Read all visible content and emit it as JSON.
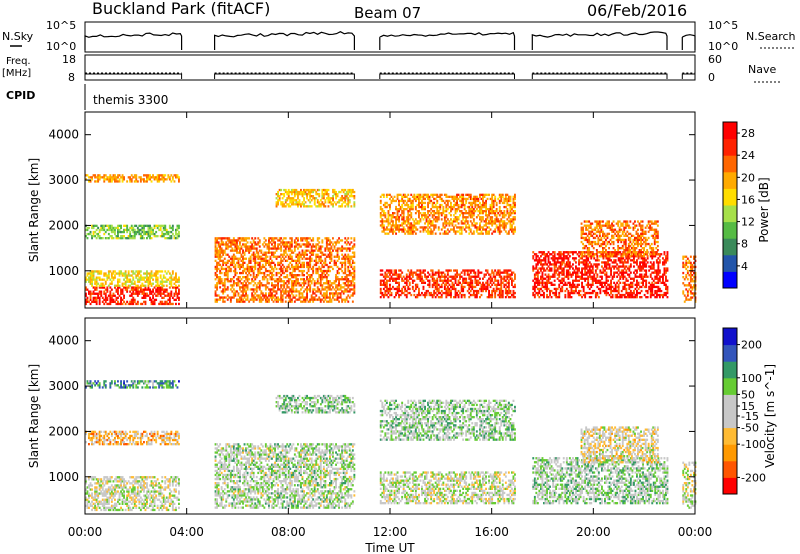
{
  "header": {
    "site": "Buckland Park (fitACF)",
    "beam": "Beam 07",
    "date": "06/Feb/2016"
  },
  "panels": {
    "nsky_label": "N.Sky",
    "nsky_ticks": [
      "10^5",
      "10^0"
    ],
    "nsearch_label": "N.Search",
    "nsearch_ticks": [
      "10^5",
      "10^0"
    ],
    "freq_label_1": "Freq.",
    "freq_label_2": "[MHz]",
    "freq_ticks": [
      "18",
      "8"
    ],
    "nave_label": "Nave",
    "nave_ticks": [
      "60",
      "0"
    ],
    "cpid_label": "CPID",
    "cpid_value": "themis 3300"
  },
  "chart_data": [
    {
      "type": "heatmap",
      "title": "Power",
      "xlabel": "Time UT",
      "ylabel": "Slant Range [km]",
      "xticks": [
        "00:00",
        "04:00",
        "08:00",
        "12:00",
        "16:00",
        "20:00",
        "00:00"
      ],
      "xlim_hours": [
        0,
        24
      ],
      "yticks": [
        1000,
        2000,
        3000,
        4000
      ],
      "ylim": [
        180,
        4500
      ],
      "colorbar": {
        "label": "Power [dB]",
        "ticks": [
          4,
          8,
          12,
          16,
          20,
          24,
          28
        ],
        "range": [
          0,
          30
        ],
        "colors": [
          "#0000ff",
          "#2255aa",
          "#3a8a5a",
          "#55bb44",
          "#a6e04a",
          "#ffdd00",
          "#ffaa00",
          "#ff6600",
          "#ff2200",
          "#ff0000"
        ]
      },
      "observation_gaps_hours": [
        [
          3.8,
          5.1
        ],
        [
          10.6,
          11.6
        ],
        [
          16.9,
          17.6
        ],
        [
          22.9,
          23.5
        ]
      ],
      "echo_regions": [
        {
          "t": [
            0.0,
            3.7
          ],
          "r": [
            250,
            650
          ],
          "db": 26
        },
        {
          "t": [
            0.0,
            3.7
          ],
          "r": [
            650,
            1000
          ],
          "db": 17
        },
        {
          "t": [
            0.0,
            3.7
          ],
          "r": [
            1700,
            2000
          ],
          "db": 12
        },
        {
          "t": [
            0.0,
            3.7
          ],
          "r": [
            2950,
            3100
          ],
          "db": 20
        },
        {
          "t": [
            5.1,
            10.6
          ],
          "r": [
            300,
            1700
          ],
          "db": 22
        },
        {
          "t": [
            7.5,
            10.6
          ],
          "r": [
            2400,
            2800
          ],
          "db": 18
        },
        {
          "t": [
            11.6,
            16.9
          ],
          "r": [
            400,
            1000
          ],
          "db": 25
        },
        {
          "t": [
            11.6,
            16.9
          ],
          "r": [
            1800,
            2700
          ],
          "db": 21
        },
        {
          "t": [
            17.6,
            22.9
          ],
          "r": [
            400,
            1400
          ],
          "db": 27
        },
        {
          "t": [
            19.5,
            22.5
          ],
          "r": [
            1300,
            2100
          ],
          "db": 22
        },
        {
          "t": [
            23.5,
            24.0
          ],
          "r": [
            300,
            1300
          ],
          "db": 22
        }
      ]
    },
    {
      "type": "heatmap",
      "title": "Velocity",
      "xlabel": "Time UT",
      "ylabel": "Slant Range [km]",
      "xticks": [
        "00:00",
        "04:00",
        "08:00",
        "12:00",
        "16:00",
        "20:00",
        "00:00"
      ],
      "xlim_hours": [
        0,
        24
      ],
      "yticks": [
        1000,
        2000,
        3000,
        4000
      ],
      "ylim": [
        180,
        4500
      ],
      "colorbar": {
        "label": "Velocity [m s^-1]",
        "ticks": [
          200,
          100,
          50,
          15,
          -15,
          -50,
          -100,
          -200
        ],
        "range": [
          -250,
          250
        ],
        "colors": [
          "#ff0000",
          "#ff5500",
          "#ff9900",
          "#ffbb33",
          "#c8c8c8",
          "#c8c8c8",
          "#66cc33",
          "#339966",
          "#3355bb",
          "#1111cc"
        ]
      },
      "observation_gaps_hours": [
        [
          3.8,
          5.1
        ],
        [
          10.6,
          11.6
        ],
        [
          16.9,
          17.6
        ],
        [
          22.9,
          23.5
        ]
      ],
      "echo_regions": [
        {
          "t": [
            0.0,
            3.7
          ],
          "r": [
            250,
            1000
          ],
          "v": 0
        },
        {
          "t": [
            0.0,
            3.7
          ],
          "r": [
            1700,
            2000
          ],
          "v": -80
        },
        {
          "t": [
            0.0,
            3.7
          ],
          "r": [
            2950,
            3100
          ],
          "v": 120
        },
        {
          "t": [
            5.1,
            10.6
          ],
          "r": [
            300,
            1700
          ],
          "v": 30
        },
        {
          "t": [
            7.5,
            10.6
          ],
          "r": [
            2400,
            2800
          ],
          "v": 60
        },
        {
          "t": [
            11.6,
            16.9
          ],
          "r": [
            400,
            1100
          ],
          "v": 10
        },
        {
          "t": [
            11.6,
            16.9
          ],
          "r": [
            1800,
            2700
          ],
          "v": 40
        },
        {
          "t": [
            17.6,
            22.9
          ],
          "r": [
            400,
            1400
          ],
          "v": 45
        },
        {
          "t": [
            19.5,
            22.5
          ],
          "r": [
            1300,
            2100
          ],
          "v": -20
        },
        {
          "t": [
            23.5,
            24.0
          ],
          "r": [
            300,
            1300
          ],
          "v": 0
        }
      ]
    }
  ]
}
